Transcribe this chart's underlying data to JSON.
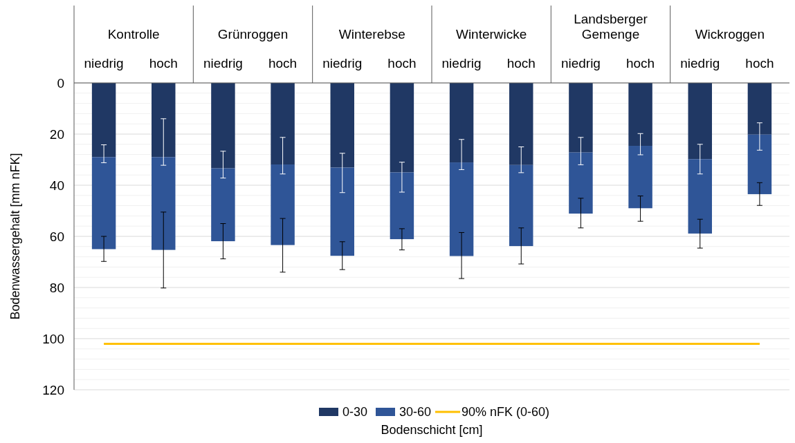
{
  "chart_data": {
    "type": "bar",
    "stacked": true,
    "xlabel": "Bodenschicht [cm]",
    "ylabel": "Bodenwassergehalt [mm nFK]",
    "categories": [
      "niedrig",
      "hoch",
      "niedrig",
      "hoch",
      "niedrig",
      "hoch",
      "niedrig",
      "hoch",
      "niedrig",
      "hoch",
      "niedrig",
      "hoch"
    ],
    "annotations": [
      "Kontrolle",
      "Grünroggen",
      "Winterebse",
      "Winterwicke",
      "Landsberger\nGemenge",
      "Wickroggen"
    ],
    "series": [
      {
        "name": "0-30",
        "color": "#203864",
        "values": [
          29.0,
          29.0,
          33.4,
          31.9,
          33.1,
          35.0,
          31.1,
          32.1,
          27.2,
          24.6,
          29.8,
          20.2
        ],
        "errors": [
          [
            24.2,
            31.2
          ],
          [
            14.0,
            32.2
          ],
          [
            26.7,
            37.2
          ],
          [
            21.3,
            35.6
          ],
          [
            27.5,
            42.9
          ],
          [
            31.0,
            42.7
          ],
          [
            22.1,
            33.9
          ],
          [
            25.0,
            35.1
          ],
          [
            21.3,
            32.0
          ],
          [
            19.8,
            28.1
          ],
          [
            24.0,
            35.6
          ],
          [
            15.6,
            26.3
          ]
        ]
      },
      {
        "name": "30-60",
        "color": "#2f5597",
        "values": [
          36.0,
          36.3,
          28.5,
          31.5,
          34.5,
          26.1,
          36.6,
          31.7,
          23.9,
          24.4,
          29.1,
          23.3
        ],
        "errors": [
          [
            60.0,
            69.8
          ],
          [
            50.5,
            80.2
          ],
          [
            55.0,
            68.8
          ],
          [
            53.0,
            74.0
          ],
          [
            62.1,
            73.0
          ],
          [
            57.0,
            65.3
          ],
          [
            58.5,
            76.5
          ],
          [
            56.7,
            70.8
          ],
          [
            45.1,
            56.7
          ],
          [
            44.2,
            54.1
          ],
          [
            53.3,
            64.6
          ],
          [
            39.0,
            47.9
          ]
        ]
      },
      {
        "name": "90% nFK (0-60)",
        "type": "line",
        "color": "#ffc000",
        "values": [
          102,
          102,
          102,
          102,
          102,
          102,
          102,
          102,
          102,
          102,
          102,
          102
        ]
      }
    ],
    "ylim": [
      120,
      0
    ],
    "yticks": [
      0,
      {
        "value": 4,
        "label": null
      },
      {
        "value": 8,
        "label": null
      },
      {
        "value": 12,
        "label": null
      },
      {
        "value": 16,
        "label": null
      },
      20,
      {
        "value": 24,
        "label": null
      },
      {
        "value": 28,
        "label": null
      },
      {
        "value": 32,
        "label": null
      },
      {
        "value": 36,
        "label": null
      },
      40,
      {
        "value": 44,
        "label": null
      },
      {
        "value": 48,
        "label": null
      },
      {
        "value": 52,
        "label": null
      },
      {
        "value": 56,
        "label": null
      },
      60,
      {
        "value": 64,
        "label": null
      },
      {
        "value": 68,
        "label": null
      },
      {
        "value": 72,
        "label": null
      },
      {
        "value": 76,
        "label": null
      },
      80,
      {
        "value": 84,
        "label": null
      },
      {
        "value": 88,
        "label": null
      },
      {
        "value": 92,
        "label": null
      },
      {
        "value": 96,
        "label": null
      },
      100,
      {
        "value": 104,
        "label": null
      },
      {
        "value": 108,
        "label": null
      },
      {
        "value": 112,
        "label": null
      },
      {
        "value": 116,
        "label": null
      },
      120
    ],
    "grid": true,
    "legend": "bottom"
  }
}
